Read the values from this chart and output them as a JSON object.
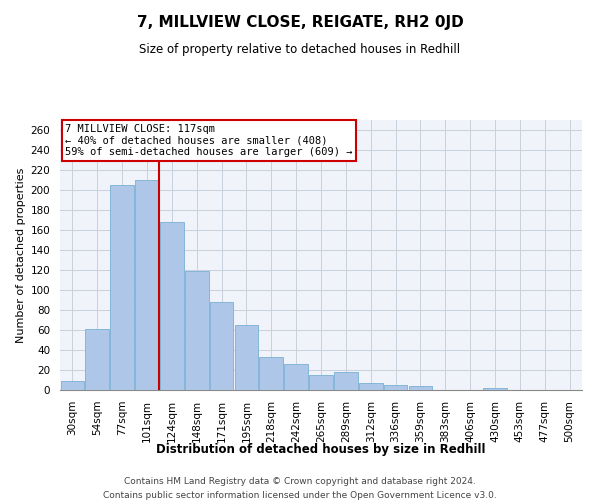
{
  "title": "7, MILLVIEW CLOSE, REIGATE, RH2 0JD",
  "subtitle": "Size of property relative to detached houses in Redhill",
  "xlabel": "Distribution of detached houses by size in Redhill",
  "ylabel": "Number of detached properties",
  "bar_labels": [
    "30sqm",
    "54sqm",
    "77sqm",
    "101sqm",
    "124sqm",
    "148sqm",
    "171sqm",
    "195sqm",
    "218sqm",
    "242sqm",
    "265sqm",
    "289sqm",
    "312sqm",
    "336sqm",
    "359sqm",
    "383sqm",
    "406sqm",
    "430sqm",
    "453sqm",
    "477sqm",
    "500sqm"
  ],
  "bar_values": [
    9,
    61,
    205,
    210,
    168,
    119,
    88,
    65,
    33,
    26,
    15,
    18,
    7,
    5,
    4,
    0,
    0,
    2,
    0,
    0,
    0
  ],
  "bar_color": "#aec6e8",
  "bar_edge_color": "#7ab0d4",
  "vline_color": "#cc0000",
  "vline_position": 3.5,
  "annotation_text": "7 MILLVIEW CLOSE: 117sqm\n← 40% of detached houses are smaller (408)\n59% of semi-detached houses are larger (609) →",
  "annotation_box_color": "#cc0000",
  "ylim": [
    0,
    270
  ],
  "yticks": [
    0,
    20,
    40,
    60,
    80,
    100,
    120,
    140,
    160,
    180,
    200,
    220,
    240,
    260
  ],
  "footnote1": "Contains HM Land Registry data © Crown copyright and database right 2024.",
  "footnote2": "Contains public sector information licensed under the Open Government Licence v3.0.",
  "bg_color": "#f0f4fa",
  "grid_color": "#c8d0dc",
  "title_fontsize": 11,
  "subtitle_fontsize": 8.5,
  "xlabel_fontsize": 8.5,
  "ylabel_fontsize": 8,
  "tick_fontsize": 7.5,
  "annotation_fontsize": 7.5,
  "footnote_fontsize": 6.5
}
